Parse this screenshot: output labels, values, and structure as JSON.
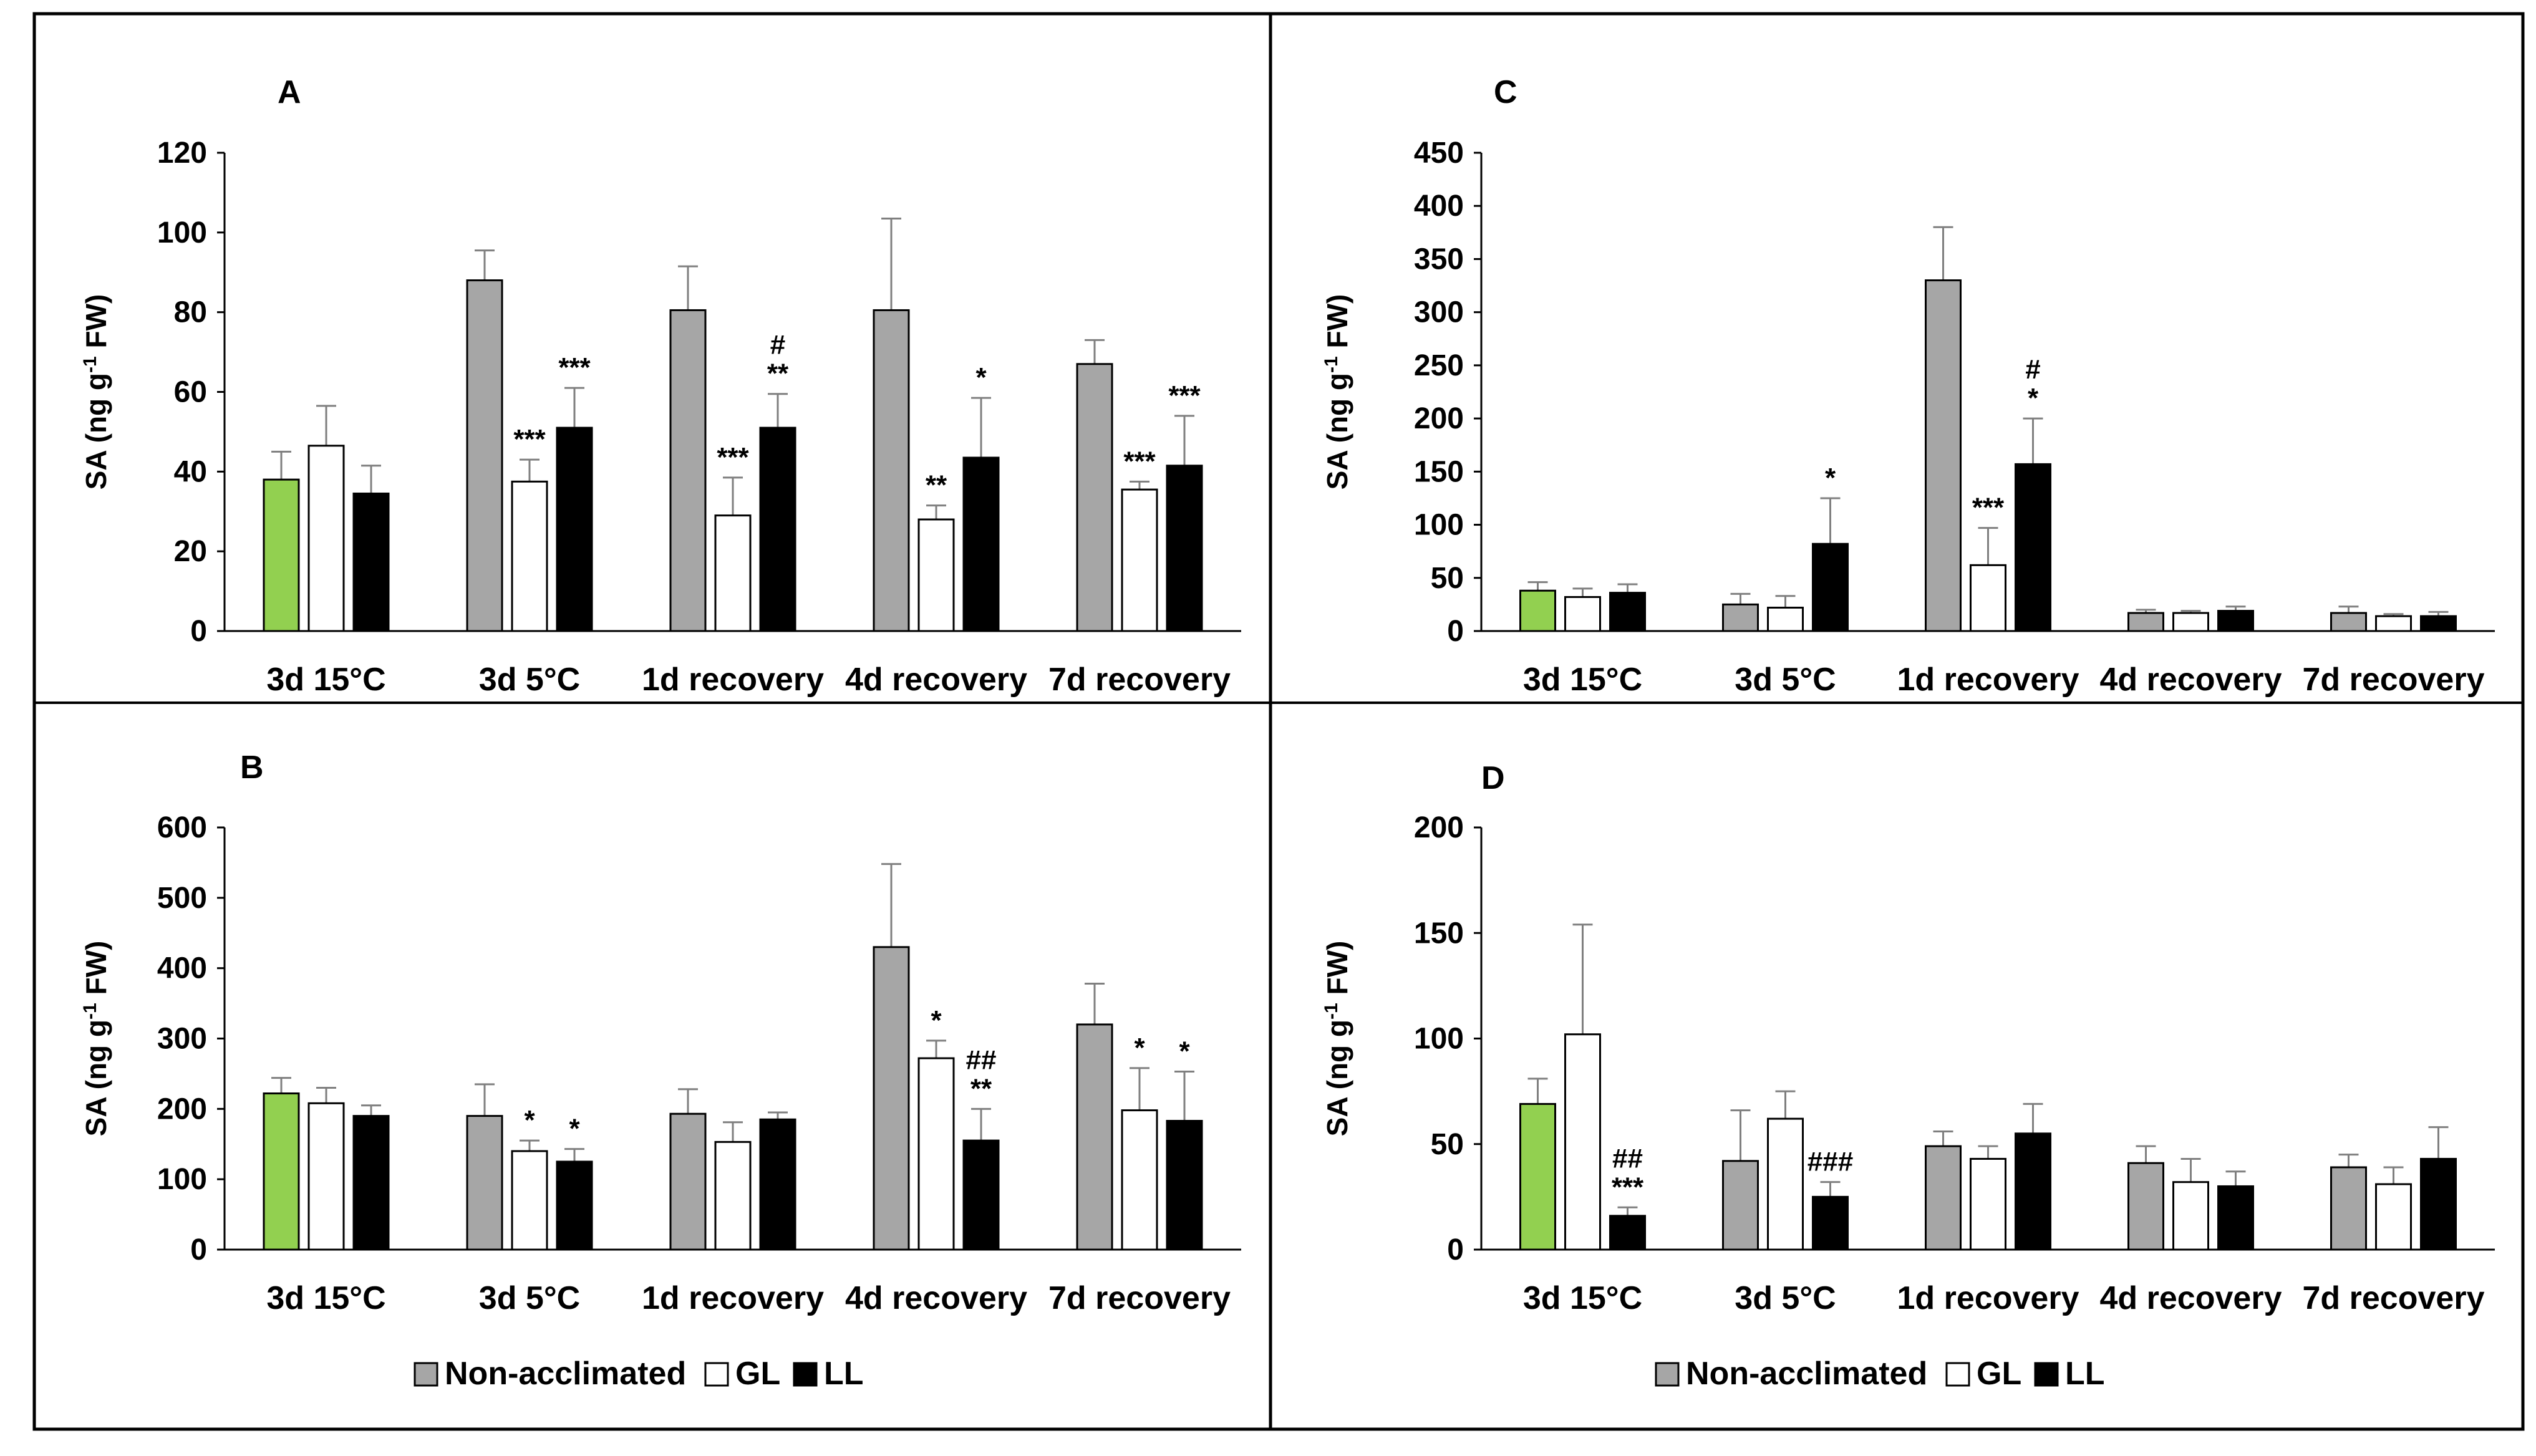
{
  "figure": {
    "legend": {
      "items": [
        {
          "label": "Non-acclimated",
          "color": "#a6a6a6"
        },
        {
          "label": "GL",
          "color": "#ffffff"
        },
        {
          "label": "LL",
          "color": "#000000"
        }
      ]
    }
  },
  "chart_data": [
    {
      "panel": "A",
      "type": "bar",
      "ylabel": {
        "main": "SA (ng g",
        "sup": "-1",
        "tail": " FW)"
      },
      "ylim": [
        0,
        120
      ],
      "yticks": [
        0,
        20,
        40,
        60,
        80,
        100,
        120
      ],
      "categories": [
        "3d 15°C",
        "3d 5°C",
        "1d recovery",
        "4d recovery",
        "7d recovery"
      ],
      "series": [
        {
          "name": "Non-acclimated",
          "values": [
            38,
            88,
            80.5,
            80.5,
            67
          ],
          "errors": [
            7,
            7.5,
            11,
            23,
            6
          ]
        },
        {
          "name": "GL",
          "values": [
            46.5,
            37.5,
            29,
            28,
            35.5
          ],
          "errors": [
            10,
            5.5,
            9.5,
            3.5,
            2
          ]
        },
        {
          "name": "LL",
          "values": [
            34.5,
            51,
            51,
            43.5,
            41.5
          ],
          "errors": [
            7,
            10,
            8.5,
            15,
            12.5
          ]
        }
      ],
      "annotations": [
        {
          "category": 1,
          "series": 1,
          "text": [
            "***"
          ]
        },
        {
          "category": 1,
          "series": 2,
          "text": [
            "***"
          ]
        },
        {
          "category": 2,
          "series": 1,
          "text": [
            "***"
          ]
        },
        {
          "category": 2,
          "series": 2,
          "text": [
            "#",
            "**"
          ]
        },
        {
          "category": 3,
          "series": 1,
          "text": [
            "**"
          ]
        },
        {
          "category": 3,
          "series": 2,
          "text": [
            "*"
          ]
        },
        {
          "category": 4,
          "series": 1,
          "text": [
            "***"
          ]
        },
        {
          "category": 4,
          "series": 2,
          "text": [
            "***"
          ]
        }
      ]
    },
    {
      "panel": "B",
      "type": "bar",
      "ylabel": {
        "main": "SA (ng g",
        "sup": "-1",
        "tail": " FW)"
      },
      "ylim": [
        0,
        600
      ],
      "yticks": [
        0,
        100,
        200,
        300,
        400,
        500,
        600
      ],
      "categories": [
        "3d 15°C",
        "3d 5°C",
        "1d recovery",
        "4d recovery",
        "7d recovery"
      ],
      "series": [
        {
          "name": "Non-acclimated",
          "values": [
            222,
            190,
            193,
            430,
            320
          ],
          "errors": [
            22,
            45,
            35,
            118,
            58
          ]
        },
        {
          "name": "GL",
          "values": [
            208,
            140,
            153,
            272,
            198
          ],
          "errors": [
            22,
            15,
            28,
            25,
            60
          ]
        },
        {
          "name": "LL",
          "values": [
            190,
            125,
            185,
            155,
            183
          ],
          "errors": [
            15,
            18,
            10,
            45,
            70
          ]
        }
      ],
      "annotations": [
        {
          "category": 1,
          "series": 1,
          "text": [
            "*"
          ]
        },
        {
          "category": 1,
          "series": 2,
          "text": [
            "*"
          ]
        },
        {
          "category": 3,
          "series": 1,
          "text": [
            "*"
          ]
        },
        {
          "category": 3,
          "series": 2,
          "text": [
            "##",
            "**"
          ]
        },
        {
          "category": 4,
          "series": 1,
          "text": [
            "*"
          ]
        },
        {
          "category": 4,
          "series": 2,
          "text": [
            "*"
          ]
        }
      ]
    },
    {
      "panel": "C",
      "type": "bar",
      "ylabel": {
        "main": "SA (ng g",
        "sup": "-1",
        "tail": " FW)"
      },
      "ylim": [
        0,
        450
      ],
      "yticks": [
        0,
        50,
        100,
        150,
        200,
        250,
        300,
        350,
        400,
        450
      ],
      "categories": [
        "3d 15°C",
        "3d 5°C",
        "1d recovery",
        "4d recovery",
        "7d recovery"
      ],
      "series": [
        {
          "name": "Non-acclimated",
          "values": [
            38,
            25,
            330,
            17,
            17
          ],
          "errors": [
            8,
            10,
            50,
            3,
            6
          ]
        },
        {
          "name": "GL",
          "values": [
            32,
            22,
            62,
            17,
            14
          ],
          "errors": [
            8,
            11,
            35,
            2,
            2
          ]
        },
        {
          "name": "LL",
          "values": [
            36,
            82,
            157,
            19,
            14
          ],
          "errors": [
            8,
            43,
            43,
            4,
            4
          ]
        }
      ],
      "annotations": [
        {
          "category": 1,
          "series": 2,
          "text": [
            "*"
          ]
        },
        {
          "category": 2,
          "series": 1,
          "text": [
            "***"
          ]
        },
        {
          "category": 2,
          "series": 2,
          "text": [
            "#",
            "*"
          ]
        }
      ]
    },
    {
      "panel": "D",
      "type": "bar",
      "ylabel": {
        "main": "SA (ng g",
        "sup": "-1",
        "tail": " FW)"
      },
      "ylim": [
        0,
        200
      ],
      "yticks": [
        0,
        50,
        100,
        150,
        200
      ],
      "categories": [
        "3d 15°C",
        "3d 5°C",
        "1d recovery",
        "4d recovery",
        "7d recovery"
      ],
      "series": [
        {
          "name": "Non-acclimated",
          "values": [
            69,
            42,
            49,
            41,
            39
          ],
          "errors": [
            12,
            24,
            7,
            8,
            6
          ]
        },
        {
          "name": "GL",
          "values": [
            102,
            62,
            43,
            32,
            31
          ],
          "errors": [
            52,
            13,
            6,
            11,
            8
          ]
        },
        {
          "name": "LL",
          "values": [
            16,
            25,
            55,
            30,
            43
          ],
          "errors": [
            4,
            7,
            14,
            7,
            15
          ]
        }
      ],
      "annotations": [
        {
          "category": 0,
          "series": 2,
          "text": [
            "##",
            "***"
          ]
        },
        {
          "category": 1,
          "series": 2,
          "text": [
            "###"
          ]
        }
      ]
    }
  ],
  "highlight_color": "#92d050"
}
